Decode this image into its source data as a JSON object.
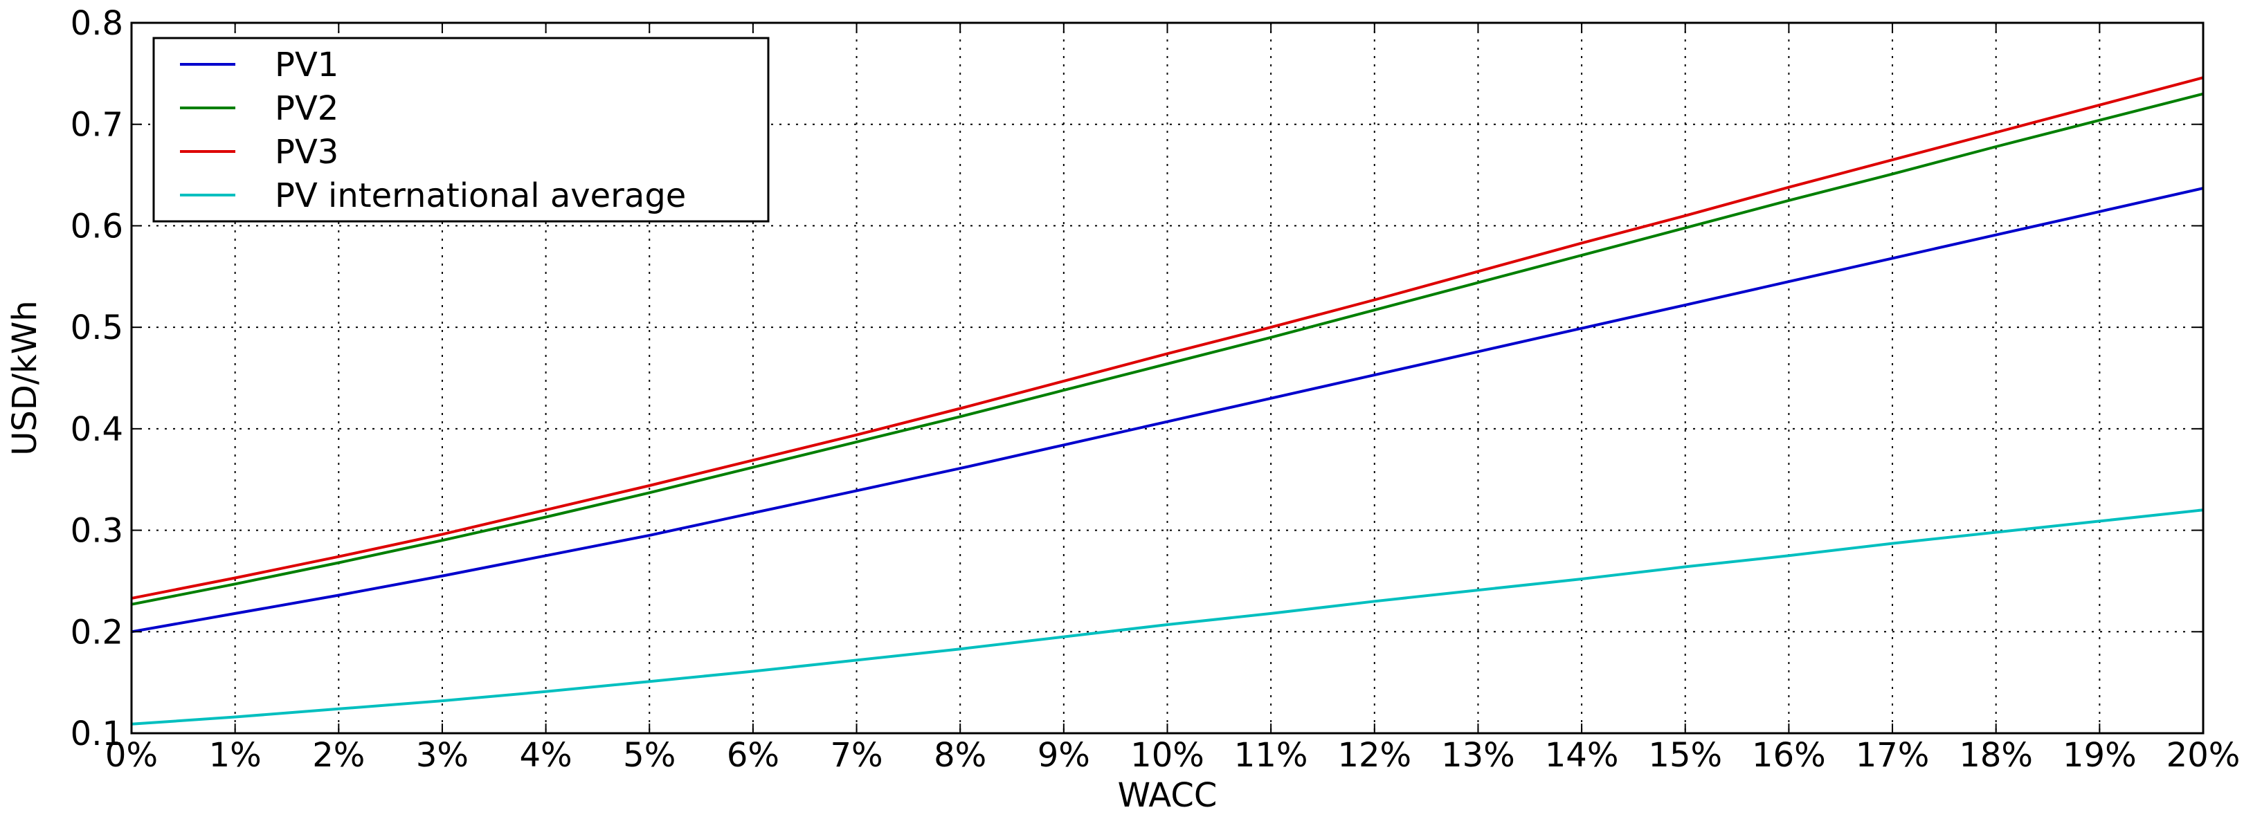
{
  "chart_data": {
    "type": "line",
    "title": "",
    "xlabel": "WACC",
    "ylabel": "USD/kWh",
    "x": [
      0,
      1,
      2,
      3,
      4,
      5,
      6,
      7,
      8,
      9,
      10,
      11,
      12,
      13,
      14,
      15,
      16,
      17,
      18,
      19,
      20
    ],
    "x_tick_labels": [
      "0%",
      "1%",
      "2%",
      "3%",
      "4%",
      "5%",
      "6%",
      "7%",
      "8%",
      "9%",
      "10%",
      "11%",
      "12%",
      "13%",
      "14%",
      "15%",
      "16%",
      "17%",
      "18%",
      "19%",
      "20%"
    ],
    "xlim": [
      0,
      20
    ],
    "ylim": [
      0.1,
      0.8
    ],
    "y_ticks": [
      0.1,
      0.2,
      0.3,
      0.4,
      0.5,
      0.6,
      0.7,
      0.8
    ],
    "y_tick_labels": [
      "0.1",
      "0.2",
      "0.3",
      "0.4",
      "0.5",
      "0.6",
      "0.7",
      "0.8"
    ],
    "grid": true,
    "legend_position": "top-left",
    "series": [
      {
        "name": "PV1",
        "color": "#0000cc",
        "values": [
          0.2,
          0.218,
          0.236,
          0.255,
          0.275,
          0.295,
          0.317,
          0.339,
          0.361,
          0.384,
          0.407,
          0.43,
          0.453,
          0.476,
          0.499,
          0.522,
          0.545,
          0.568,
          0.591,
          0.614,
          0.637
        ]
      },
      {
        "name": "PV2",
        "color": "#007f00",
        "values": [
          0.227,
          0.247,
          0.268,
          0.29,
          0.313,
          0.337,
          0.362,
          0.387,
          0.412,
          0.438,
          0.464,
          0.49,
          0.517,
          0.544,
          0.571,
          0.598,
          0.625,
          0.651,
          0.678,
          0.704,
          0.73
        ]
      },
      {
        "name": "PV3",
        "color": "#dd0000",
        "values": [
          0.233,
          0.253,
          0.274,
          0.296,
          0.32,
          0.344,
          0.369,
          0.394,
          0.42,
          0.447,
          0.474,
          0.5,
          0.527,
          0.555,
          0.583,
          0.61,
          0.638,
          0.665,
          0.692,
          0.719,
          0.746
        ]
      },
      {
        "name": "PV international average",
        "color": "#00bfbf",
        "values": [
          0.109,
          0.116,
          0.124,
          0.132,
          0.141,
          0.151,
          0.161,
          0.172,
          0.183,
          0.195,
          0.207,
          0.218,
          0.23,
          0.241,
          0.252,
          0.264,
          0.275,
          0.287,
          0.298,
          0.309,
          0.32
        ]
      }
    ]
  }
}
